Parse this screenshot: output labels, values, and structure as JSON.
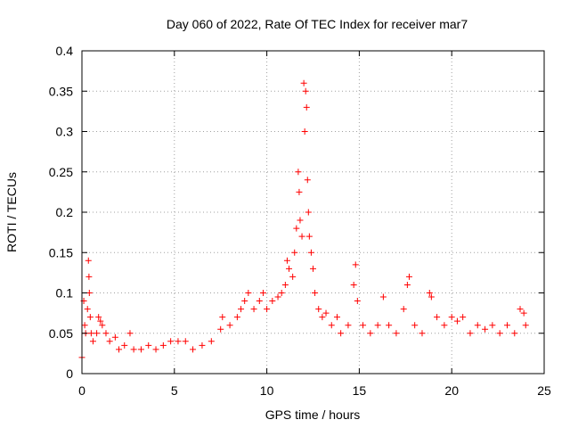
{
  "chart_data": {
    "type": "scatter",
    "title": "Day 060 of 2022, Rate Of TEC Index for receiver mar7",
    "xlabel": "GPS time / hours",
    "ylabel": "ROTI / TECUs",
    "xlim": [
      0,
      25
    ],
    "ylim": [
      0,
      0.4
    ],
    "x_ticks": [
      0,
      5,
      10,
      15,
      20,
      25
    ],
    "x_tick_labels": [
      "0",
      "5",
      "10",
      "15",
      "20",
      "25"
    ],
    "y_ticks": [
      0,
      0.05,
      0.1,
      0.15,
      0.2,
      0.25,
      0.3,
      0.35,
      0.4
    ],
    "y_tick_labels": [
      "0",
      "0.05",
      "0.1",
      "0.15",
      "0.2",
      "0.25",
      "0.3",
      "0.35",
      "0.4"
    ],
    "grid": true,
    "marker": "plus",
    "color": "#ff0000",
    "series": [
      {
        "points": [
          [
            0.0,
            0.02
          ],
          [
            0.1,
            0.09
          ],
          [
            0.15,
            0.06
          ],
          [
            0.2,
            0.05
          ],
          [
            0.3,
            0.08
          ],
          [
            0.35,
            0.14
          ],
          [
            0.38,
            0.12
          ],
          [
            0.4,
            0.1
          ],
          [
            0.45,
            0.07
          ],
          [
            0.5,
            0.05
          ],
          [
            0.6,
            0.04
          ],
          [
            0.8,
            0.05
          ],
          [
            0.9,
            0.07
          ],
          [
            1.0,
            0.065
          ],
          [
            1.1,
            0.06
          ],
          [
            1.3,
            0.05
          ],
          [
            1.5,
            0.04
          ],
          [
            1.8,
            0.045
          ],
          [
            2.0,
            0.03
          ],
          [
            2.3,
            0.035
          ],
          [
            2.6,
            0.05
          ],
          [
            2.8,
            0.03
          ],
          [
            3.2,
            0.03
          ],
          [
            3.6,
            0.035
          ],
          [
            4.0,
            0.03
          ],
          [
            4.4,
            0.035
          ],
          [
            4.8,
            0.04
          ],
          [
            5.2,
            0.04
          ],
          [
            5.6,
            0.04
          ],
          [
            6.0,
            0.03
          ],
          [
            6.5,
            0.035
          ],
          [
            7.0,
            0.04
          ],
          [
            7.5,
            0.055
          ],
          [
            7.6,
            0.07
          ],
          [
            8.0,
            0.06
          ],
          [
            8.4,
            0.07
          ],
          [
            8.6,
            0.08
          ],
          [
            8.8,
            0.09
          ],
          [
            9.0,
            0.1
          ],
          [
            9.3,
            0.08
          ],
          [
            9.6,
            0.09
          ],
          [
            9.8,
            0.1
          ],
          [
            10.0,
            0.08
          ],
          [
            10.3,
            0.09
          ],
          [
            10.6,
            0.095
          ],
          [
            10.8,
            0.1
          ],
          [
            11.0,
            0.11
          ],
          [
            11.1,
            0.14
          ],
          [
            11.2,
            0.13
          ],
          [
            11.4,
            0.12
          ],
          [
            11.5,
            0.15
          ],
          [
            11.6,
            0.18
          ],
          [
            11.7,
            0.25
          ],
          [
            11.75,
            0.225
          ],
          [
            11.8,
            0.19
          ],
          [
            11.9,
            0.17
          ],
          [
            12.0,
            0.36
          ],
          [
            12.05,
            0.3
          ],
          [
            12.1,
            0.35
          ],
          [
            12.15,
            0.33
          ],
          [
            12.2,
            0.24
          ],
          [
            12.25,
            0.2
          ],
          [
            12.3,
            0.17
          ],
          [
            12.4,
            0.15
          ],
          [
            12.5,
            0.13
          ],
          [
            12.6,
            0.1
          ],
          [
            12.8,
            0.08
          ],
          [
            13.0,
            0.07
          ],
          [
            13.2,
            0.075
          ],
          [
            13.5,
            0.06
          ],
          [
            13.8,
            0.07
          ],
          [
            14.0,
            0.05
          ],
          [
            14.4,
            0.06
          ],
          [
            14.7,
            0.11
          ],
          [
            14.8,
            0.135
          ],
          [
            14.9,
            0.09
          ],
          [
            15.2,
            0.06
          ],
          [
            15.6,
            0.05
          ],
          [
            16.0,
            0.06
          ],
          [
            16.3,
            0.095
          ],
          [
            16.6,
            0.06
          ],
          [
            17.0,
            0.05
          ],
          [
            17.4,
            0.08
          ],
          [
            17.6,
            0.11
          ],
          [
            17.7,
            0.12
          ],
          [
            18.0,
            0.06
          ],
          [
            18.4,
            0.05
          ],
          [
            18.8,
            0.1
          ],
          [
            18.9,
            0.095
          ],
          [
            19.2,
            0.07
          ],
          [
            19.6,
            0.06
          ],
          [
            20.0,
            0.07
          ],
          [
            20.3,
            0.065
          ],
          [
            20.6,
            0.07
          ],
          [
            21.0,
            0.05
          ],
          [
            21.4,
            0.06
          ],
          [
            21.8,
            0.055
          ],
          [
            22.2,
            0.06
          ],
          [
            22.6,
            0.05
          ],
          [
            23.0,
            0.06
          ],
          [
            23.4,
            0.05
          ],
          [
            23.7,
            0.08
          ],
          [
            23.9,
            0.075
          ],
          [
            24.0,
            0.06
          ]
        ]
      }
    ]
  }
}
